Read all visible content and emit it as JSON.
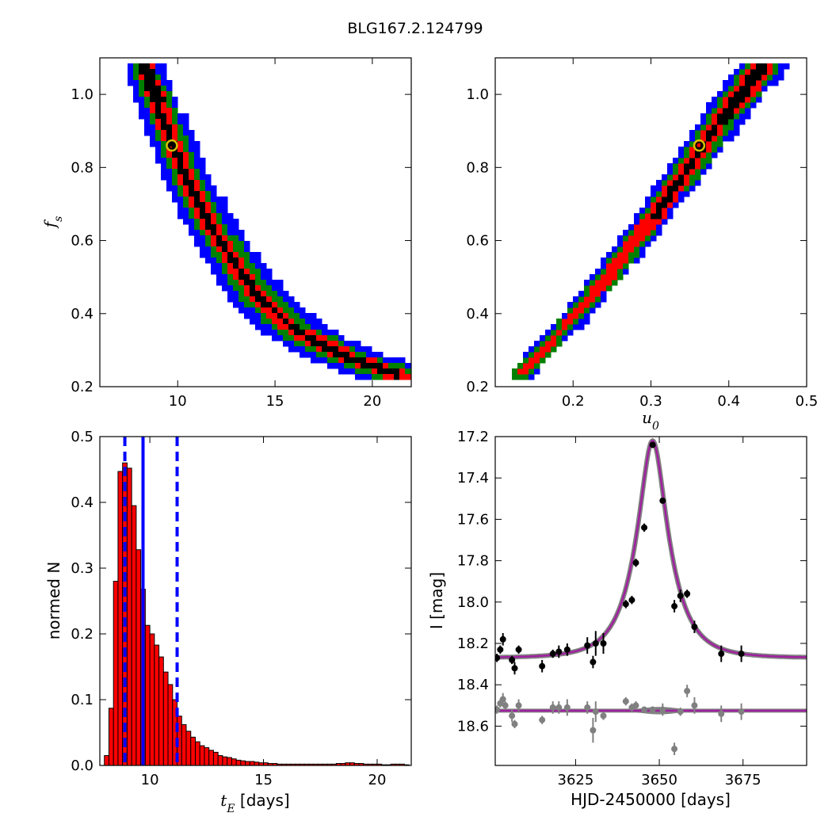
{
  "figure": {
    "title": "BLG167.2.124799",
    "colors": {
      "density_levels": [
        "#0000ff",
        "#008000",
        "#ff0000",
        "#000000"
      ],
      "hist_fill": "#ff0000",
      "median_line": "#0000ff",
      "model_curve": "#a020a0",
      "model_shadow": "#808080",
      "best_fit_marker": "#d4c000",
      "data_points": "#000000",
      "residual_points": "#808080"
    }
  },
  "chart_data": [
    {
      "id": "tE_vs_fs",
      "type": "heatmap",
      "xlabel": "",
      "ylabel": "f_s",
      "xlim": [
        6,
        22
      ],
      "ylim": [
        0.2,
        1.1
      ],
      "xticks": [
        "10",
        "15",
        "20"
      ],
      "xtick_values": [
        10,
        15,
        20
      ],
      "yticks": [
        "0.2",
        "0.4",
        "0.6",
        "0.8",
        "1.0"
      ],
      "ytick_values": [
        0.2,
        0.4,
        0.6,
        0.8,
        1.0
      ],
      "best_fit": {
        "x": 9.7,
        "y": 0.86
      },
      "ridge": [
        [
          8.2,
          1.08
        ],
        [
          8.8,
          1.0
        ],
        [
          9.5,
          0.9
        ],
        [
          10.4,
          0.78
        ],
        [
          11.4,
          0.67
        ],
        [
          12.6,
          0.57
        ],
        [
          14.0,
          0.46
        ],
        [
          16.0,
          0.36
        ],
        [
          18.5,
          0.29
        ],
        [
          21.2,
          0.24
        ]
      ],
      "levels": [
        {
          "level": "1",
          "color": "#0000ff",
          "half_width": [
            0.9,
            1.2,
            2.0
          ]
        },
        {
          "level": "2",
          "color": "#008000",
          "half_width": [
            0.55,
            0.7,
            1.2
          ]
        },
        {
          "level": "3",
          "color": "#ff0000",
          "half_width": [
            0.32,
            0.4,
            0.45
          ]
        },
        {
          "level": "4",
          "color": "#000000",
          "half_width": [
            0.15,
            0.12,
            0.0
          ]
        }
      ]
    },
    {
      "id": "u0_vs_fs",
      "type": "heatmap",
      "xlabel": "u_0",
      "ylabel": "",
      "xlim": [
        0.1,
        0.5
      ],
      "ylim": [
        0.2,
        1.1
      ],
      "xticks": [
        "0.2",
        "0.3",
        "0.4",
        "0.5"
      ],
      "xtick_values": [
        0.2,
        0.3,
        0.4,
        0.5
      ],
      "yticks": [
        "0.2",
        "0.4",
        "0.6",
        "0.8",
        "1.0"
      ],
      "ytick_values": [
        0.2,
        0.4,
        0.6,
        0.8,
        1.0
      ],
      "best_fit": {
        "x": 0.362,
        "y": 0.86
      },
      "ridge": [
        [
          0.13,
          0.24
        ],
        [
          0.2,
          0.4
        ],
        [
          0.25,
          0.53
        ],
        [
          0.3,
          0.67
        ],
        [
          0.35,
          0.82
        ],
        [
          0.4,
          0.97
        ],
        [
          0.44,
          1.08
        ]
      ],
      "levels": [
        {
          "level": "1",
          "color": "#0000ff",
          "half_width": [
            0.012,
            0.02,
            0.03
          ]
        },
        {
          "level": "2",
          "color": "#008000",
          "half_width": [
            0.008,
            0.013,
            0.02
          ]
        },
        {
          "level": "3",
          "color": "#ff0000",
          "half_width": [
            0.0,
            0.008,
            0.012
          ]
        },
        {
          "level": "4",
          "color": "#000000",
          "half_width": [
            0.0,
            0.0,
            0.006
          ]
        }
      ]
    },
    {
      "id": "tE_histogram",
      "type": "bar",
      "xlabel": "t_E [days]",
      "xlabel_math": "t_E",
      "xlabel_text": " [days]",
      "ylabel": "normed N",
      "xlim": [
        7.8,
        21.5
      ],
      "ylim": [
        0.0,
        0.5
      ],
      "xticks": [
        "10",
        "15",
        "20"
      ],
      "xtick_values": [
        10,
        15,
        20
      ],
      "yticks": [
        "0.0",
        "0.1",
        "0.2",
        "0.3",
        "0.4",
        "0.5"
      ],
      "ytick_values": [
        0,
        0.1,
        0.2,
        0.3,
        0.4,
        0.5
      ],
      "bin_start": 8.0,
      "bin_width": 0.2,
      "values": [
        0.015,
        0.087,
        0.28,
        0.447,
        0.46,
        0.452,
        0.395,
        0.328,
        0.268,
        0.213,
        0.2,
        0.183,
        0.165,
        0.142,
        0.123,
        0.1,
        0.075,
        0.062,
        0.052,
        0.043,
        0.036,
        0.03,
        0.027,
        0.023,
        0.02,
        0.015,
        0.013,
        0.012,
        0.01,
        0.008,
        0.007,
        0.006,
        0.006,
        0.005,
        0.004,
        0.004,
        0.003,
        0.003,
        0.002,
        0.002,
        0.002,
        0.002,
        0.002,
        0.002,
        0.002,
        0.002,
        0.002,
        0.002,
        0.002,
        0.002,
        0.002,
        0.003,
        0.003,
        0.004,
        0.004,
        0.003,
        0.003,
        0.002,
        0.002,
        0.002,
        0.002,
        0.001,
        0.001,
        0.002,
        0.002,
        0.002,
        0.001
      ],
      "median": 9.7,
      "lower": 8.9,
      "upper": 11.2
    },
    {
      "id": "light_curve",
      "type": "scatter",
      "xlabel": "HJD-2450000 [days]",
      "ylabel": "I [mag]",
      "xlim": [
        3601,
        3694
      ],
      "ylim": [
        18.79,
        17.2
      ],
      "xticks": [
        "3625",
        "3650",
        "3675"
      ],
      "xtick_values": [
        3625,
        3650,
        3675
      ],
      "yticks": [
        "17.2",
        "17.4",
        "17.6",
        "17.8",
        "18.0",
        "18.2",
        "18.4",
        "18.6"
      ],
      "ytick_values": [
        17.2,
        17.4,
        17.6,
        17.8,
        18.0,
        18.2,
        18.4,
        18.6
      ],
      "model": {
        "t0": 3648.0,
        "tE": 9.7,
        "u0": 0.362,
        "fs": 0.86,
        "baseline": 18.27
      },
      "residual_baseline": 18.525,
      "observations": {
        "x": [
          3601.5,
          3602.5,
          3603.3,
          3606.0,
          3606.8,
          3608.0,
          3615.0,
          3618.2,
          3620.0,
          3622.5,
          3628.5,
          3630.2,
          3631.0,
          3633.3,
          3640.0,
          3641.8,
          3643.0,
          3645.5,
          3648.0,
          3651.0,
          3654.5,
          3656.3,
          3658.3,
          3660.5,
          3668.5,
          3674.5
        ],
        "y": [
          18.27,
          18.23,
          18.18,
          18.28,
          18.32,
          18.23,
          18.31,
          18.25,
          18.24,
          18.23,
          18.21,
          18.29,
          18.2,
          18.2,
          18.01,
          17.99,
          17.81,
          17.64,
          17.24,
          17.51,
          18.02,
          17.97,
          17.96,
          18.12,
          18.25,
          18.25
        ],
        "err": [
          0.02,
          0.02,
          0.03,
          0.02,
          0.03,
          0.02,
          0.03,
          0.02,
          0.03,
          0.03,
          0.04,
          0.03,
          0.06,
          0.05,
          0.02,
          0.02,
          0.02,
          0.02,
          0.01,
          0.01,
          0.03,
          0.03,
          0.02,
          0.03,
          0.04,
          0.04
        ]
      },
      "residuals": {
        "x": [
          3601.5,
          3602.5,
          3603.3,
          3604.0,
          3606.0,
          3606.8,
          3608.0,
          3615.0,
          3618.2,
          3620.0,
          3622.5,
          3628.5,
          3630.2,
          3631.0,
          3633.3,
          3640.0,
          3641.8,
          3643.0,
          3645.5,
          3648.0,
          3651.0,
          3654.5,
          3656.3,
          3658.3,
          3660.5,
          3668.5,
          3674.5
        ],
        "y": [
          18.52,
          18.49,
          18.47,
          18.5,
          18.55,
          18.59,
          18.5,
          18.57,
          18.51,
          18.51,
          18.51,
          18.51,
          18.62,
          18.53,
          18.55,
          18.48,
          18.51,
          18.5,
          18.52,
          18.52,
          18.52,
          18.71,
          18.53,
          18.43,
          18.5,
          18.54,
          18.53
        ],
        "err": [
          0.02,
          0.02,
          0.03,
          0.02,
          0.03,
          0.02,
          0.03,
          0.02,
          0.03,
          0.03,
          0.04,
          0.03,
          0.06,
          0.05,
          0.02,
          0.02,
          0.02,
          0.02,
          0.01,
          0.01,
          0.03,
          0.03,
          0.02,
          0.03,
          0.04,
          0.04,
          0.04
        ]
      }
    }
  ]
}
